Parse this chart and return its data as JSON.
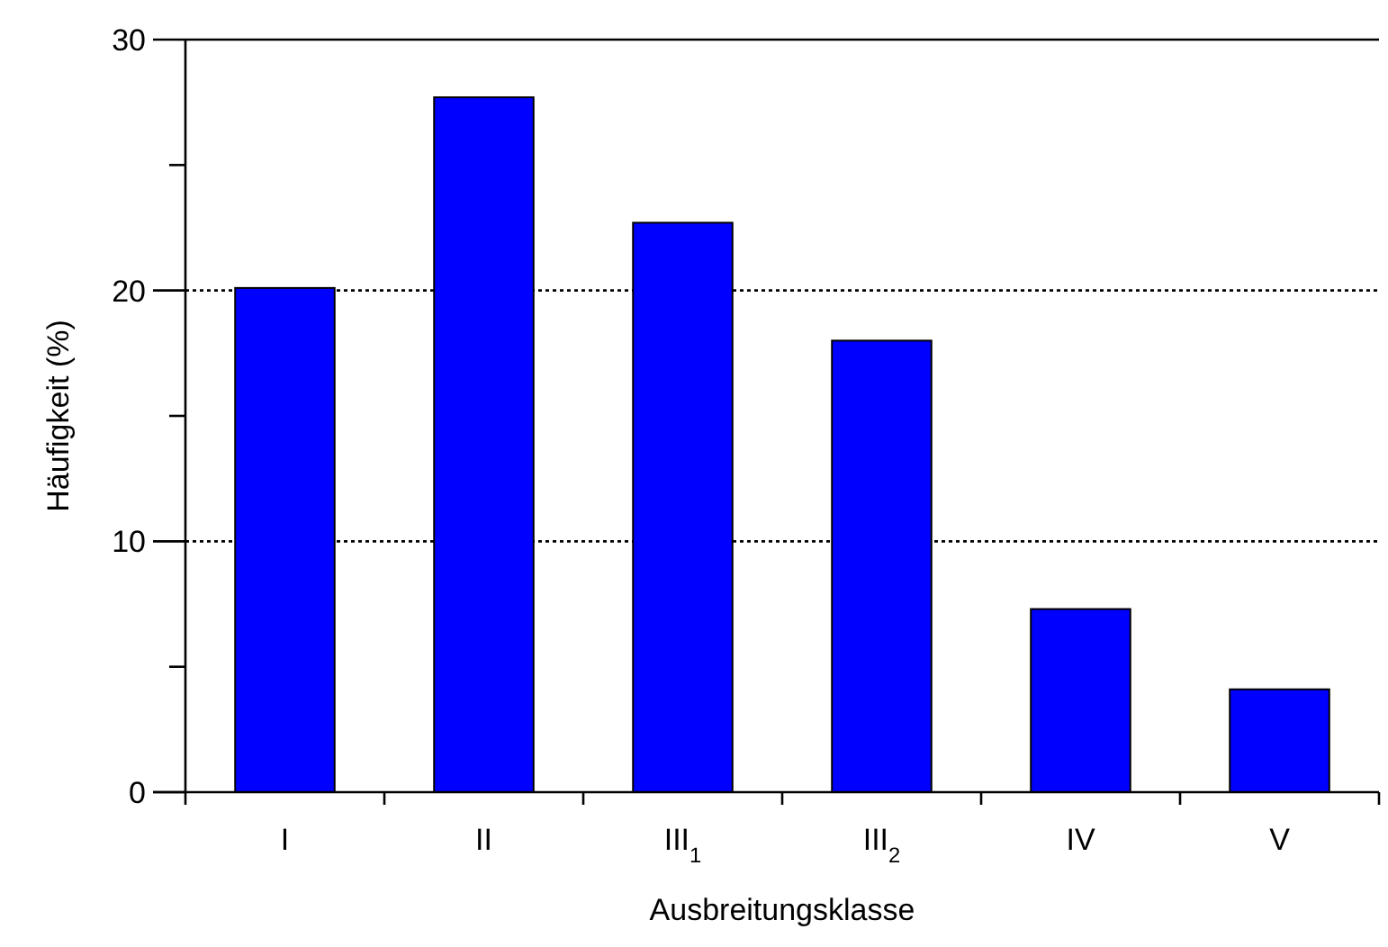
{
  "chart_data": {
    "type": "bar",
    "xlabel": "Ausbreitungsklasse",
    "ylabel": "Häufigkeit (%)",
    "categories": [
      "I",
      "II",
      "III$_{1}$",
      "III$_{2}$",
      "IV",
      "V"
    ],
    "values": [
      20.1,
      27.7,
      22.7,
      18.0,
      7.3,
      4.1
    ],
    "color": "#0000ff",
    "ylim": [
      0,
      30
    ],
    "yticks": [
      0,
      {
        "value": 5,
        "label": null
      },
      10,
      {
        "value": 15,
        "label": null
      },
      20,
      {
        "value": 25,
        "label": null
      },
      30
    ],
    "grid": "y"
  }
}
